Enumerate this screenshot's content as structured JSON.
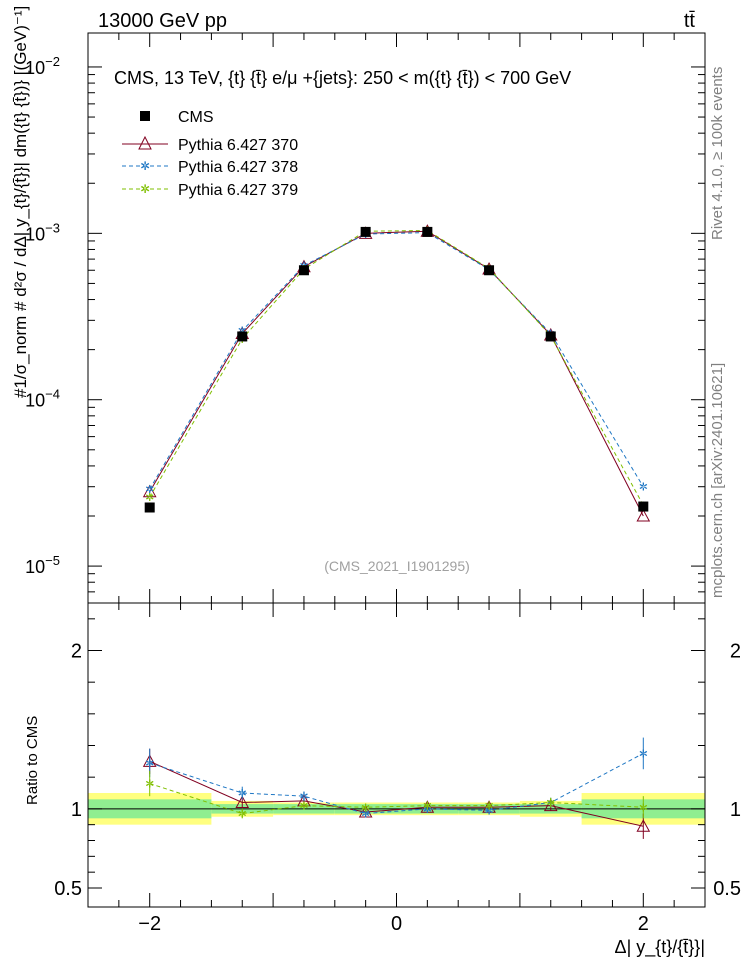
{
  "header": {
    "energy_label": "13000 GeV pp",
    "process_label": "tt̄"
  },
  "side_labels": {
    "rivet": "Rivet 4.1.0, ≥ 100k events",
    "site": "mcplots.cern.ch [arXiv:2401.10621]"
  },
  "chart_data": {
    "type": "line",
    "title": "CMS, 13 TeV, {t} {t̄} e/μ +{jets}: 250 < m({t} {t̄}) < 700 GeV",
    "watermark": "(CMS_2021_I1901295)",
    "xlabel": "Δ| y_{t}/{t̄}}|",
    "ylabel": "#1/σ_norm # d²σ / dΔ| y_{t}/{t̄}}| dm({t} {t̄})} [(GeV)⁻¹]",
    "ratio_ylabel": "Ratio to CMS",
    "xlim": [
      -2.5,
      2.5
    ],
    "ylim": [
      6e-06,
      0.016
    ],
    "yscale": "log",
    "ratio_ylim": [
      0.38,
      2.3
    ],
    "x_ticks": [
      -2,
      0,
      2
    ],
    "x_tick_labels": [
      "−2",
      "0",
      "2"
    ],
    "y_ticks": [
      1e-05,
      0.0001,
      0.001,
      0.01
    ],
    "y_tick_labels": [
      "10−5",
      "10−4",
      "10−3",
      "10−2"
    ],
    "ratio_ticks": [
      0.5,
      1,
      2
    ],
    "ratio_tick_labels": [
      "0.5",
      "1",
      "2"
    ],
    "legend_position": "top-left",
    "bin_edges": [
      -2.5,
      -1.5,
      -1.0,
      -0.5,
      0.0,
      0.5,
      1.0,
      1.5,
      2.5
    ],
    "x": [
      -2.0,
      -1.25,
      -0.75,
      -0.25,
      0.25,
      0.75,
      1.25,
      2.0
    ],
    "data": {
      "name": "CMS",
      "values": [
        2.25e-05,
        0.00024,
        0.0006,
        0.00102,
        0.00102,
        0.0006,
        0.00024,
        2.28e-05
      ],
      "band_inner": [
        0.06,
        0.03,
        0.03,
        0.03,
        0.03,
        0.03,
        0.03,
        0.06
      ],
      "band_outer": [
        0.1,
        0.05,
        0.04,
        0.04,
        0.04,
        0.04,
        0.05,
        0.1
      ]
    },
    "series": [
      {
        "name": "Pythia 6.427 370",
        "color": "#800020",
        "dash": "",
        "marker": "triangle",
        "values": [
          2.8e-05,
          0.00025,
          0.00063,
          0.001,
          0.00103,
          0.00061,
          0.000245,
          2e-05
        ],
        "ratio": [
          1.3,
          1.04,
          1.05,
          0.98,
          1.01,
          1.01,
          1.02,
          0.89
        ],
        "ratio_err": [
          0.08,
          0.03,
          0.02,
          0.01,
          0.01,
          0.02,
          0.03,
          0.08
        ]
      },
      {
        "name": "Pythia 6.427 378",
        "color": "#1f77c4",
        "dash": "4,3",
        "marker": "star",
        "values": [
          2.9e-05,
          0.00026,
          0.00064,
          0.00099,
          0.00101,
          0.000605,
          0.00025,
          3e-05
        ],
        "ratio": [
          1.29,
          1.1,
          1.08,
          0.97,
          1.0,
          0.99,
          1.04,
          1.35
        ],
        "ratio_err": [
          0.09,
          0.04,
          0.03,
          0.02,
          0.02,
          0.02,
          0.03,
          0.1
        ]
      },
      {
        "name": "Pythia 6.427 379",
        "color": "#7fbf00",
        "dash": "4,3",
        "marker": "star",
        "values": [
          2.6e-05,
          0.000232,
          0.00061,
          0.00103,
          0.00104,
          0.000615,
          0.000242,
          2.32e-05
        ],
        "ratio": [
          1.16,
          0.97,
          1.02,
          1.01,
          1.02,
          1.02,
          1.04,
          1.01
        ],
        "ratio_err": [
          0.08,
          0.03,
          0.02,
          0.01,
          0.01,
          0.02,
          0.03,
          0.07
        ]
      }
    ]
  }
}
